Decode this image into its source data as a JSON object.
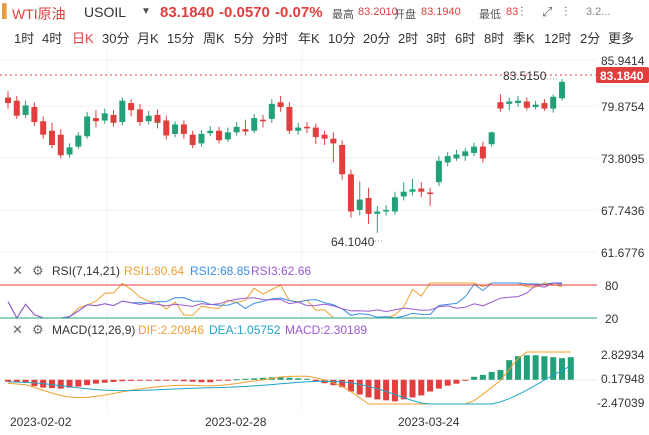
{
  "header": {
    "symbol_name": "WTI原油",
    "symbol_code": "USOIL",
    "price": "83.1840",
    "change": "-0.0570",
    "change_pct": "-0.07%",
    "high_label": "最高",
    "high_value": "83.2010",
    "open_label": "开盘",
    "open_value": "83.1940",
    "low_label": "最低",
    "low_value": "83",
    "extra_value": "3.2...",
    "colors": {
      "down": "#e23e3e",
      "accent": "#e23e3e"
    }
  },
  "tabs": [
    {
      "label": "1时"
    },
    {
      "label": "4时"
    },
    {
      "label": "日K",
      "active": true
    },
    {
      "label": "30分"
    },
    {
      "label": "月K"
    },
    {
      "label": "15分"
    },
    {
      "label": "周K"
    },
    {
      "label": "5分"
    },
    {
      "label": "分时"
    },
    {
      "label": "年K"
    },
    {
      "label": "10分"
    },
    {
      "label": "20分"
    },
    {
      "label": "2时"
    },
    {
      "label": "3时"
    },
    {
      "label": "6时"
    },
    {
      "label": "8时"
    },
    {
      "label": "季K"
    },
    {
      "label": "12时"
    },
    {
      "label": "2分"
    },
    {
      "label": "更多"
    }
  ],
  "main_axis": {
    "labels": [
      "85.9414",
      "79.8754",
      "73.8095",
      "67.7436",
      "61.6776"
    ],
    "current_price": "83.1840",
    "max_annotation": "83.5150",
    "min_annotation": "64.1040"
  },
  "rsi": {
    "title": "RSI(7,14,21)",
    "rsi1": "RSI1:80.64",
    "rsi2": "RSI2:68.85",
    "rsi3": "RSI3:62.66",
    "levels": [
      "80",
      "20"
    ],
    "colors": {
      "rsi1": "#f0a030",
      "rsi2": "#3a8ee6",
      "rsi3": "#9b59d0"
    }
  },
  "macd": {
    "title": "MACD(12,26,9)",
    "dif": "DIF:2.20846",
    "dea": "DEA:1.05752",
    "macd": "MACD:2.30189",
    "axis": [
      "2.82934",
      "0.17948",
      "-2.47039"
    ],
    "colors": {
      "dif": "#f0a030",
      "dea": "#1ea5c7",
      "macd": "#9b59d0"
    }
  },
  "dates": [
    "2023-02-02",
    "2023-02-28",
    "2023-03-24"
  ],
  "chart_data": {
    "type": "candlestick",
    "candles": [
      {
        "o": 81.2,
        "c": 80.5,
        "h": 82.0,
        "l": 79.8
      },
      {
        "o": 80.8,
        "c": 78.9,
        "h": 81.4,
        "l": 78.5
      },
      {
        "o": 79.0,
        "c": 80.2,
        "h": 80.8,
        "l": 78.6
      },
      {
        "o": 80.0,
        "c": 78.1,
        "h": 80.6,
        "l": 77.6
      },
      {
        "o": 78.2,
        "c": 76.5,
        "h": 78.8,
        "l": 76.0
      },
      {
        "o": 77.0,
        "c": 75.2,
        "h": 78.0,
        "l": 74.8
      },
      {
        "o": 76.5,
        "c": 73.9,
        "h": 77.2,
        "l": 73.5
      },
      {
        "o": 74.0,
        "c": 74.9,
        "h": 75.4,
        "l": 73.6
      },
      {
        "o": 75.0,
        "c": 76.4,
        "h": 76.8,
        "l": 74.7
      },
      {
        "o": 76.3,
        "c": 78.8,
        "h": 79.4,
        "l": 76.0
      },
      {
        "o": 78.6,
        "c": 78.2,
        "h": 79.6,
        "l": 77.4
      },
      {
        "o": 78.3,
        "c": 79.2,
        "h": 79.8,
        "l": 77.9
      },
      {
        "o": 79.0,
        "c": 78.0,
        "h": 79.6,
        "l": 77.5
      },
      {
        "o": 78.1,
        "c": 80.8,
        "h": 81.2,
        "l": 77.7
      },
      {
        "o": 80.5,
        "c": 79.6,
        "h": 81.0,
        "l": 78.8
      },
      {
        "o": 79.7,
        "c": 78.1,
        "h": 80.4,
        "l": 77.6
      },
      {
        "o": 78.2,
        "c": 78.9,
        "h": 79.5,
        "l": 77.8
      },
      {
        "o": 79.0,
        "c": 78.0,
        "h": 79.7,
        "l": 77.3
      },
      {
        "o": 78.3,
        "c": 76.4,
        "h": 78.9,
        "l": 75.9
      },
      {
        "o": 76.6,
        "c": 77.8,
        "h": 78.2,
        "l": 76.2
      },
      {
        "o": 77.8,
        "c": 76.6,
        "h": 78.3,
        "l": 76.0
      },
      {
        "o": 76.5,
        "c": 75.2,
        "h": 77.0,
        "l": 74.8
      },
      {
        "o": 75.4,
        "c": 76.6,
        "h": 77.1,
        "l": 75.0
      },
      {
        "o": 76.7,
        "c": 77.0,
        "h": 77.6,
        "l": 76.3
      },
      {
        "o": 77.0,
        "c": 75.8,
        "h": 77.5,
        "l": 75.4
      },
      {
        "o": 75.9,
        "c": 76.8,
        "h": 77.4,
        "l": 75.6
      },
      {
        "o": 76.8,
        "c": 77.5,
        "h": 78.1,
        "l": 76.4
      },
      {
        "o": 77.2,
        "c": 76.9,
        "h": 78.4,
        "l": 76.4
      },
      {
        "o": 77.0,
        "c": 78.6,
        "h": 79.1,
        "l": 76.7
      },
      {
        "o": 78.4,
        "c": 78.2,
        "h": 79.0,
        "l": 77.4
      },
      {
        "o": 78.5,
        "c": 80.4,
        "h": 81.0,
        "l": 78.0
      },
      {
        "o": 80.6,
        "c": 80.0,
        "h": 81.4,
        "l": 79.4
      },
      {
        "o": 80.0,
        "c": 77.0,
        "h": 80.6,
        "l": 76.6
      },
      {
        "o": 77.0,
        "c": 77.4,
        "h": 78.0,
        "l": 76.5
      },
      {
        "o": 77.5,
        "c": 77.3,
        "h": 78.1,
        "l": 76.7
      },
      {
        "o": 77.4,
        "c": 76.2,
        "h": 77.9,
        "l": 75.3
      },
      {
        "o": 76.5,
        "c": 76.0,
        "h": 77.0,
        "l": 75.2
      },
      {
        "o": 76.0,
        "c": 75.4,
        "h": 76.8,
        "l": 73.0
      },
      {
        "o": 75.2,
        "c": 71.5,
        "h": 75.8,
        "l": 70.8
      },
      {
        "o": 71.5,
        "c": 66.8,
        "h": 72.1,
        "l": 66.0
      },
      {
        "o": 67.0,
        "c": 68.3,
        "h": 70.6,
        "l": 66.3
      },
      {
        "o": 68.5,
        "c": 66.5,
        "h": 69.8,
        "l": 65.2
      },
      {
        "o": 66.5,
        "c": 66.8,
        "h": 67.5,
        "l": 64.1
      },
      {
        "o": 66.8,
        "c": 67.0,
        "h": 67.6,
        "l": 66.3
      },
      {
        "o": 66.8,
        "c": 68.6,
        "h": 69.3,
        "l": 66.4
      },
      {
        "o": 68.7,
        "c": 69.3,
        "h": 70.5,
        "l": 68.2
      },
      {
        "o": 69.3,
        "c": 69.6,
        "h": 70.9,
        "l": 68.8
      },
      {
        "o": 69.7,
        "c": 69.3,
        "h": 70.5,
        "l": 68.6
      },
      {
        "o": 69.2,
        "c": 69.0,
        "h": 69.8,
        "l": 67.5
      },
      {
        "o": 70.5,
        "c": 73.2,
        "h": 73.8,
        "l": 70.0
      },
      {
        "o": 73.0,
        "c": 73.8,
        "h": 74.3,
        "l": 72.5
      },
      {
        "o": 73.5,
        "c": 74.0,
        "h": 74.6,
        "l": 73.2
      },
      {
        "o": 73.8,
        "c": 74.4,
        "h": 74.8,
        "l": 73.2
      },
      {
        "o": 74.2,
        "c": 75.0,
        "h": 75.5,
        "l": 73.8
      },
      {
        "o": 75.0,
        "c": 73.5,
        "h": 75.6,
        "l": 73.0
      },
      {
        "o": 75.3,
        "c": 76.8,
        "h": 76.9,
        "l": 75.0
      },
      {
        "o": 80.6,
        "c": 79.8,
        "h": 81.6,
        "l": 79.4
      },
      {
        "o": 80.4,
        "c": 80.7,
        "h": 81.2,
        "l": 79.6
      },
      {
        "o": 80.5,
        "c": 80.8,
        "h": 81.4,
        "l": 80.0
      },
      {
        "o": 80.7,
        "c": 79.9,
        "h": 81.2,
        "l": 79.6
      },
      {
        "o": 80.0,
        "c": 80.3,
        "h": 80.8,
        "l": 79.7
      },
      {
        "o": 80.5,
        "c": 79.8,
        "h": 81.0,
        "l": 79.5
      },
      {
        "o": 79.8,
        "c": 81.3,
        "h": 81.6,
        "l": 79.3
      },
      {
        "o": 81.1,
        "c": 83.18,
        "h": 83.52,
        "l": 80.8
      }
    ],
    "y_range": [
      61.6776,
      85.9414
    ],
    "macd_hist": [
      -0.2,
      -0.25,
      -0.3,
      -0.65,
      -0.8,
      -0.85,
      -0.9,
      -0.8,
      -0.7,
      -0.55,
      -0.4,
      -0.3,
      -0.22,
      -0.15,
      -0.12,
      -0.1,
      -0.08,
      -0.08,
      -0.1,
      -0.1,
      -0.15,
      -0.2,
      -0.25,
      -0.25,
      -0.1,
      -0.05,
      0.05,
      0.1,
      0.15,
      0.2,
      0.25,
      0.3,
      0.2,
      0.15,
      0.1,
      -0.15,
      -0.35,
      -0.55,
      -0.75,
      -1.2,
      -1.5,
      -1.8,
      -2.0,
      -2.1,
      -2.2,
      -2.0,
      -1.8,
      -1.6,
      -1.2,
      -0.9,
      -0.6,
      -0.4,
      -0.1,
      0.3,
      0.5,
      0.8,
      1.0,
      2.0,
      2.4,
      2.5,
      2.5,
      2.4,
      2.3,
      2.2,
      2.3
    ],
    "macd_range": [
      -2.47039,
      2.82934
    ]
  }
}
